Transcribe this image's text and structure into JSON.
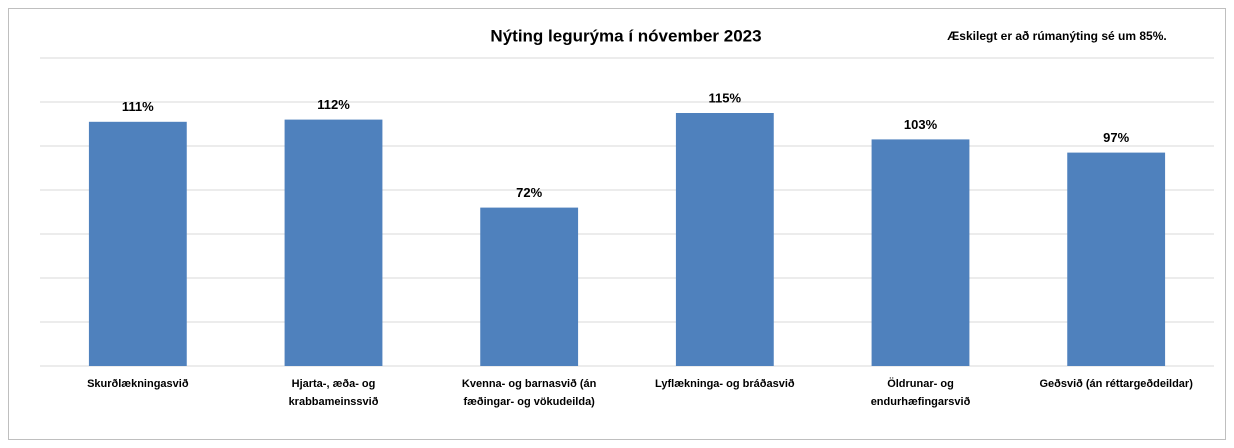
{
  "chart_data": {
    "type": "bar",
    "title": "Nýting legurýma í nóvember 2023",
    "annotation": "Æskilegt er að rúmanýting sé um 85%.",
    "categories": [
      [
        "Skurðlækningasvið"
      ],
      [
        "Hjarta-, æða- og",
        "krabbameinssvið"
      ],
      [
        "Kvenna- og barnasvið (án",
        "fæðingar- og vökudeilda)"
      ],
      [
        "Lyflækninga- og bráðasvið"
      ],
      [
        "Öldrunar- og",
        "endurhæfingarsvið"
      ],
      [
        "Geðsvið (án réttargeðdeildar)"
      ]
    ],
    "values": [
      111,
      112,
      72,
      115,
      103,
      97
    ],
    "value_labels": [
      "111%",
      "112%",
      "72%",
      "115%",
      "103%",
      "97%"
    ],
    "color": "#4f81bd",
    "ylim": [
      0,
      140
    ],
    "yticks": [
      0,
      20,
      40,
      60,
      80,
      100,
      120,
      140
    ],
    "ytick_labels": false,
    "grid": true
  }
}
